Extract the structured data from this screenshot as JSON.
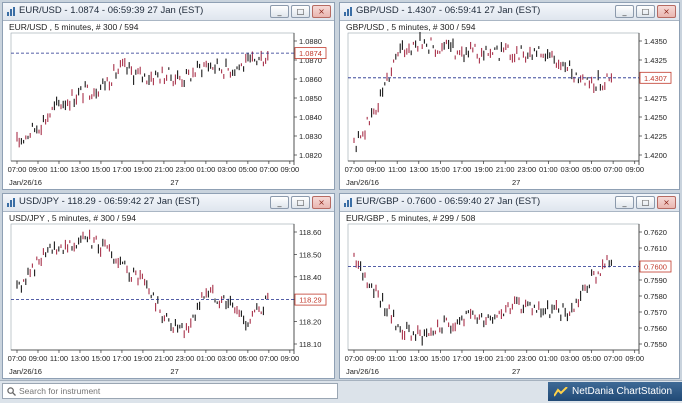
{
  "panels": [
    {
      "id": "eurusd",
      "title": "EUR/USD - 1.0874 - 06:59:39  27 Jan (EST)",
      "subtitle": "EUR/USD , 5 minutes, # 300 / 594",
      "price_label": "1.0874",
      "y_ticks": [
        "1.0880",
        "1.0870",
        "1.0860",
        "1.0850",
        "1.0840",
        "1.0830",
        "1.0820"
      ],
      "x_ticks": [
        "07:00",
        "09:00",
        "11:00",
        "13:00",
        "15:00",
        "17:00",
        "19:00",
        "21:00",
        "23:00",
        "01:00",
        "03:00",
        "05:00",
        "07:00",
        "09:00"
      ],
      "date_labels": [
        "Jan/26/16",
        "27"
      ],
      "minimize": "_",
      "restore": "□",
      "close": "×"
    },
    {
      "id": "gbpusd",
      "title": "GBP/USD - 1.4307 - 06:59:41  27 Jan (EST)",
      "subtitle": "GBP/USD , 5 minutes, # 300 / 594",
      "price_label": "1.4307",
      "y_ticks": [
        "1.4350",
        "1.4325",
        "1.4300",
        "1.4275",
        "1.4250",
        "1.4225",
        "1.4200"
      ],
      "x_ticks": [
        "07:00",
        "09:00",
        "11:00",
        "13:00",
        "15:00",
        "17:00",
        "19:00",
        "21:00",
        "23:00",
        "01:00",
        "03:00",
        "05:00",
        "07:00",
        "09:00"
      ],
      "date_labels": [
        "Jan/26/16",
        "27"
      ],
      "minimize": "_",
      "restore": "□",
      "close": "×"
    },
    {
      "id": "usdjpy",
      "title": "USD/JPY - 118.29 - 06:59:42  27 Jan (EST)",
      "subtitle": "USD/JPY , 5 minutes, # 300 / 594",
      "price_label": "118.29",
      "y_ticks": [
        "118.60",
        "118.50",
        "118.40",
        "118.30",
        "118.20",
        "118.10"
      ],
      "x_ticks": [
        "07:00",
        "09:00",
        "11:00",
        "13:00",
        "15:00",
        "17:00",
        "19:00",
        "21:00",
        "23:00",
        "01:00",
        "03:00",
        "05:00",
        "07:00",
        "09:00"
      ],
      "date_labels": [
        "Jan/26/16",
        "27"
      ],
      "minimize": "_",
      "restore": "□",
      "close": "×"
    },
    {
      "id": "eurgbp",
      "title": "EUR/GBP - 0.7600 - 06:59:40  27 Jan (EST)",
      "subtitle": "EUR/GBP , 5 minutes, # 299 / 508",
      "price_label": "0.7600",
      "y_ticks": [
        "0.7620",
        "0.7610",
        "0.7600",
        "0.7590",
        "0.7580",
        "0.7570",
        "0.7560",
        "0.7550"
      ],
      "x_ticks": [
        "07:00",
        "09:00",
        "11:00",
        "13:00",
        "15:00",
        "17:00",
        "19:00",
        "21:00",
        "23:00",
        "01:00",
        "03:00",
        "05:00",
        "07:00",
        "09:00"
      ],
      "date_labels": [
        "Jan/26/16",
        "27"
      ],
      "minimize": "_",
      "restore": "□",
      "close": "×"
    }
  ],
  "chart_data": [
    {
      "type": "line",
      "title": "EUR/USD , 5 minutes, # 300 / 594",
      "ylim": [
        1.0815,
        1.0885
      ],
      "current": 1.0874,
      "color": "#1a1a1a",
      "accent": "#a8324a",
      "x": [
        "07:00",
        "09:00",
        "11:00",
        "13:00",
        "15:00",
        "17:00",
        "19:00",
        "21:00",
        "23:00",
        "01:00",
        "03:00",
        "05:00",
        "07:00"
      ],
      "y": [
        1.0825,
        1.0834,
        1.0846,
        1.0852,
        1.0856,
        1.0866,
        1.0861,
        1.0862,
        1.086,
        1.0868,
        1.0865,
        1.0868,
        1.0873
      ]
    },
    {
      "type": "line",
      "title": "GBP/USD , 5 minutes, # 300 / 594",
      "ylim": [
        1.419,
        1.437
      ],
      "current": 1.4307,
      "color": "#1a1a1a",
      "accent": "#a8324a",
      "x": [
        "07:00",
        "09:00",
        "11:00",
        "13:00",
        "15:00",
        "17:00",
        "19:00",
        "21:00",
        "23:00",
        "01:00",
        "03:00",
        "05:00",
        "07:00"
      ],
      "y": [
        1.421,
        1.4262,
        1.4342,
        1.4356,
        1.4348,
        1.4345,
        1.434,
        1.4344,
        1.4342,
        1.4338,
        1.4318,
        1.43,
        1.4305
      ]
    },
    {
      "type": "line",
      "title": "USD/JPY , 5 minutes, # 300 / 594",
      "ylim": [
        118.05,
        118.65
      ],
      "current": 118.29,
      "color": "#1a1a1a",
      "accent": "#a8324a",
      "x": [
        "07:00",
        "09:00",
        "11:00",
        "13:00",
        "15:00",
        "17:00",
        "19:00",
        "21:00",
        "23:00",
        "01:00",
        "03:00",
        "05:00",
        "07:00"
      ],
      "y": [
        118.33,
        118.47,
        118.54,
        118.58,
        118.55,
        118.44,
        118.38,
        118.2,
        118.12,
        118.33,
        118.28,
        118.18,
        118.29
      ]
    },
    {
      "type": "line",
      "title": "EUR/GBP , 5 minutes, # 299 / 508",
      "ylim": [
        0.7545,
        0.7628
      ],
      "current": 0.76,
      "color": "#1a1a1a",
      "accent": "#a8324a",
      "x": [
        "07:00",
        "09:00",
        "11:00",
        "13:00",
        "15:00",
        "17:00",
        "19:00",
        "21:00",
        "23:00",
        "01:00",
        "03:00",
        "05:00",
        "07:00"
      ],
      "y": [
        0.7603,
        0.7585,
        0.756,
        0.7555,
        0.756,
        0.7566,
        0.7567,
        0.7572,
        0.7574,
        0.7571,
        0.757,
        0.7592,
        0.7606
      ]
    }
  ],
  "taskbar": {
    "search_placeholder": "Search for instrument",
    "brand": "NetDania ChartStation"
  }
}
